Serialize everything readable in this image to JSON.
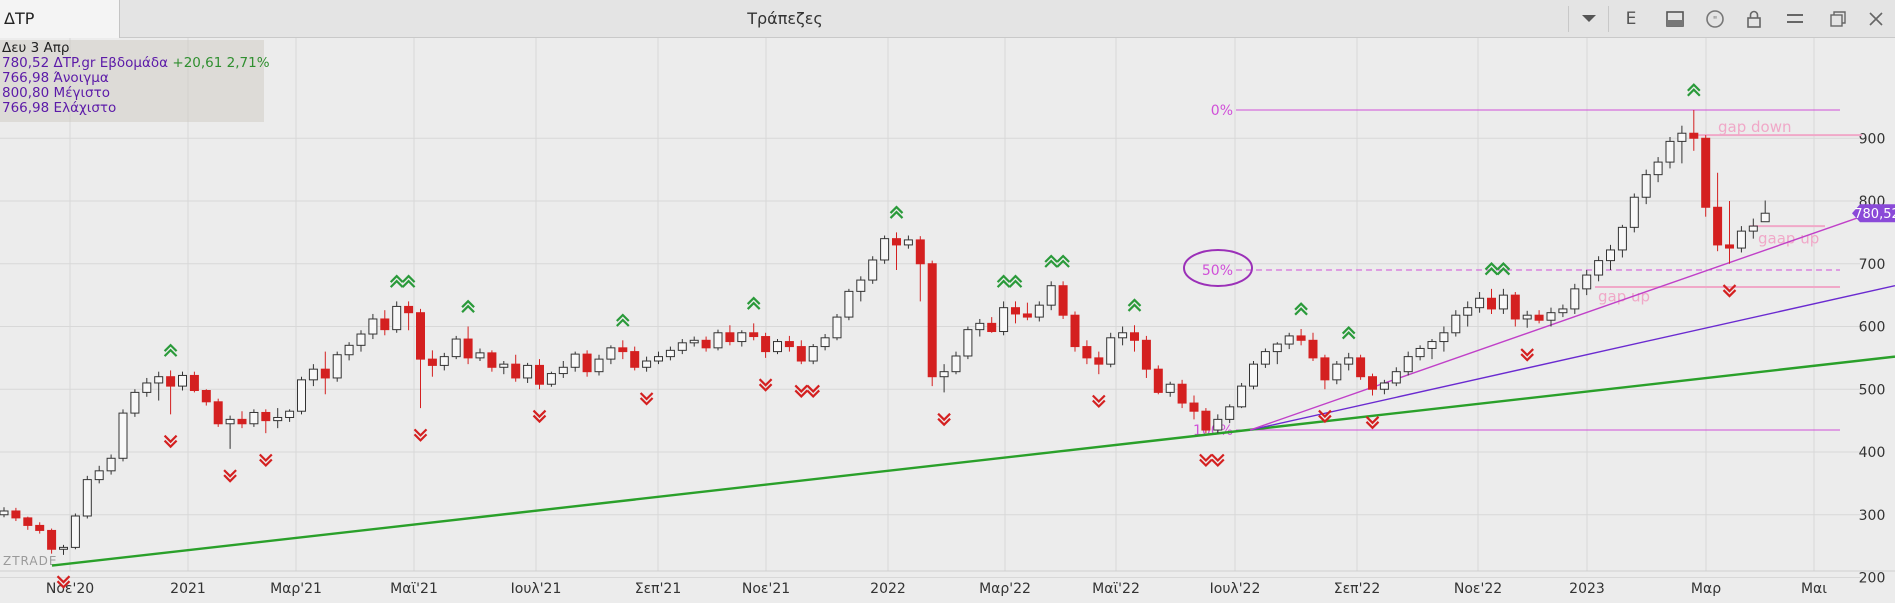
{
  "header": {
    "symbol": "ΔΤΡ",
    "title": "Τράπεζες",
    "e_label": "E"
  },
  "info": {
    "date": "Δευ 3 Απρ",
    "last": "780,52",
    "source": "ΔTP.gr Εβδομάδα",
    "change": "+20,61",
    "change_pct": "2,71%",
    "open": "766,98",
    "open_label": "Άνοιγμα",
    "high": "800,80",
    "high_label": "Μέγιστο",
    "low": "766,98",
    "low_label": "Ελάχιστο"
  },
  "watermark": "ZTRADE",
  "price_tag": "780,52",
  "colors": {
    "up_fill": "#f8f8f8",
    "down": "#d42020",
    "green_trend": "#2aa02a",
    "purple": "#6a2ad0",
    "magenta": "#d050d8",
    "pink": "#f0a8c8",
    "up_arrow": "#2a9a3a",
    "down_arrow": "#d42020"
  },
  "chart_data": {
    "type": "candlestick",
    "interval": "weekly",
    "ylim": [
      180,
      1005
    ],
    "y_ticks": [
      200,
      300,
      400,
      500,
      600,
      700,
      800,
      900
    ],
    "x_tick_labels": [
      "Νοε'20",
      "2021",
      "Μαρ'21",
      "Μαϊ'21",
      "Ιουλ'21",
      "Σεπ'21",
      "Νοε'21",
      "2022",
      "Μαρ'22",
      "Μαϊ'22",
      "Ιουλ'22",
      "Σεπ'22",
      "Νοε'22",
      "2023",
      "Μαρ",
      "Μαι"
    ],
    "candles": [
      [
        300,
        312,
        296,
        306
      ],
      [
        306,
        311,
        290,
        295
      ],
      [
        295,
        297,
        276,
        283
      ],
      [
        283,
        288,
        270,
        275
      ],
      [
        275,
        278,
        238,
        245
      ],
      [
        245,
        252,
        236,
        248
      ],
      [
        248,
        302,
        245,
        298
      ],
      [
        298,
        362,
        294,
        356
      ],
      [
        356,
        378,
        350,
        370
      ],
      [
        370,
        396,
        364,
        390
      ],
      [
        390,
        468,
        385,
        462
      ],
      [
        462,
        500,
        456,
        495
      ],
      [
        495,
        518,
        488,
        510
      ],
      [
        510,
        528,
        482,
        520
      ],
      [
        520,
        530,
        460,
        505
      ],
      [
        505,
        528,
        498,
        522
      ],
      [
        522,
        528,
        495,
        498
      ],
      [
        498,
        500,
        474,
        480
      ],
      [
        480,
        485,
        440,
        445
      ],
      [
        445,
        458,
        405,
        452
      ],
      [
        452,
        465,
        438,
        445
      ],
      [
        445,
        468,
        440,
        463
      ],
      [
        463,
        468,
        430,
        450
      ],
      [
        450,
        470,
        438,
        455
      ],
      [
        455,
        468,
        448,
        465
      ],
      [
        465,
        520,
        460,
        515
      ],
      [
        515,
        540,
        505,
        532
      ],
      [
        532,
        560,
        492,
        518
      ],
      [
        518,
        560,
        512,
        555
      ],
      [
        555,
        575,
        546,
        570
      ],
      [
        570,
        594,
        560,
        588
      ],
      [
        588,
        620,
        580,
        612
      ],
      [
        612,
        626,
        586,
        595
      ],
      [
        595,
        640,
        590,
        632
      ],
      [
        632,
        640,
        594,
        622
      ],
      [
        622,
        628,
        470,
        548
      ],
      [
        548,
        562,
        520,
        538
      ],
      [
        538,
        558,
        530,
        552
      ],
      [
        552,
        585,
        548,
        580
      ],
      [
        580,
        600,
        540,
        550
      ],
      [
        550,
        565,
        545,
        558
      ],
      [
        558,
        562,
        528,
        535
      ],
      [
        535,
        545,
        524,
        540
      ],
      [
        540,
        555,
        512,
        518
      ],
      [
        518,
        542,
        510,
        538
      ],
      [
        538,
        548,
        500,
        508
      ],
      [
        508,
        528,
        504,
        525
      ],
      [
        525,
        545,
        518,
        535
      ],
      [
        535,
        560,
        528,
        556
      ],
      [
        556,
        562,
        520,
        528
      ],
      [
        528,
        555,
        522,
        548
      ],
      [
        548,
        570,
        540,
        566
      ],
      [
        566,
        578,
        548,
        560
      ],
      [
        560,
        568,
        530,
        535
      ],
      [
        535,
        552,
        528,
        545
      ],
      [
        545,
        560,
        540,
        552
      ],
      [
        552,
        568,
        546,
        562
      ],
      [
        562,
        580,
        556,
        574
      ],
      [
        574,
        584,
        568,
        578
      ],
      [
        578,
        584,
        560,
        566
      ],
      [
        566,
        595,
        562,
        590
      ],
      [
        590,
        602,
        570,
        576
      ],
      [
        576,
        594,
        568,
        590
      ],
      [
        590,
        605,
        578,
        584
      ],
      [
        584,
        590,
        550,
        560
      ],
      [
        560,
        580,
        556,
        576
      ],
      [
        576,
        585,
        560,
        568
      ],
      [
        568,
        578,
        540,
        545
      ],
      [
        545,
        572,
        540,
        568
      ],
      [
        568,
        588,
        562,
        582
      ],
      [
        582,
        620,
        578,
        615
      ],
      [
        615,
        660,
        610,
        656
      ],
      [
        656,
        680,
        640,
        674
      ],
      [
        674,
        712,
        668,
        706
      ],
      [
        706,
        745,
        700,
        740
      ],
      [
        740,
        750,
        690,
        730
      ],
      [
        730,
        745,
        724,
        738
      ],
      [
        738,
        744,
        640,
        700
      ],
      [
        700,
        705,
        505,
        520
      ],
      [
        520,
        540,
        495,
        528
      ],
      [
        528,
        560,
        524,
        553
      ],
      [
        553,
        600,
        548,
        595
      ],
      [
        595,
        612,
        584,
        605
      ],
      [
        605,
        615,
        590,
        592
      ],
      [
        592,
        640,
        586,
        630
      ],
      [
        630,
        640,
        605,
        620
      ],
      [
        620,
        638,
        610,
        615
      ],
      [
        615,
        640,
        608,
        634
      ],
      [
        634,
        672,
        626,
        665
      ],
      [
        665,
        672,
        612,
        618
      ],
      [
        618,
        624,
        560,
        568
      ],
      [
        568,
        578,
        540,
        550
      ],
      [
        550,
        560,
        524,
        540
      ],
      [
        540,
        590,
        535,
        582
      ],
      [
        582,
        600,
        570,
        590
      ],
      [
        590,
        602,
        560,
        578
      ],
      [
        578,
        585,
        518,
        532
      ],
      [
        532,
        538,
        492,
        495
      ],
      [
        495,
        512,
        488,
        508
      ],
      [
        508,
        515,
        470,
        478
      ],
      [
        478,
        490,
        452,
        465
      ],
      [
        465,
        470,
        430,
        435
      ],
      [
        435,
        460,
        430,
        452
      ],
      [
        452,
        476,
        446,
        472
      ],
      [
        472,
        510,
        470,
        505
      ],
      [
        505,
        545,
        500,
        540
      ],
      [
        540,
        565,
        534,
        560
      ],
      [
        560,
        575,
        540,
        572
      ],
      [
        572,
        590,
        564,
        585
      ],
      [
        585,
        596,
        570,
        578
      ],
      [
        578,
        590,
        545,
        550
      ],
      [
        550,
        555,
        500,
        515
      ],
      [
        515,
        545,
        508,
        540
      ],
      [
        540,
        558,
        530,
        550
      ],
      [
        550,
        555,
        515,
        520
      ],
      [
        520,
        525,
        490,
        500
      ],
      [
        500,
        515,
        492,
        510
      ],
      [
        510,
        535,
        505,
        528
      ],
      [
        528,
        560,
        522,
        552
      ],
      [
        552,
        570,
        546,
        565
      ],
      [
        565,
        580,
        548,
        576
      ],
      [
        576,
        600,
        560,
        590
      ],
      [
        590,
        626,
        584,
        618
      ],
      [
        618,
        640,
        600,
        630
      ],
      [
        630,
        655,
        622,
        645
      ],
      [
        645,
        660,
        620,
        628
      ],
      [
        628,
        660,
        620,
        650
      ],
      [
        650,
        655,
        600,
        612
      ],
      [
        612,
        625,
        598,
        618
      ],
      [
        618,
        626,
        605,
        610
      ],
      [
        610,
        630,
        600,
        622
      ],
      [
        622,
        635,
        615,
        628
      ],
      [
        628,
        668,
        620,
        660
      ],
      [
        660,
        690,
        650,
        682
      ],
      [
        682,
        712,
        672,
        705
      ],
      [
        705,
        730,
        690,
        722
      ],
      [
        722,
        762,
        710,
        758
      ],
      [
        758,
        812,
        750,
        806
      ],
      [
        806,
        850,
        795,
        842
      ],
      [
        842,
        870,
        830,
        862
      ],
      [
        862,
        902,
        852,
        895
      ],
      [
        895,
        920,
        860,
        908
      ],
      [
        908,
        945,
        880,
        900
      ],
      [
        900,
        905,
        775,
        790
      ],
      [
        790,
        845,
        720,
        730
      ],
      [
        730,
        800,
        700,
        725
      ],
      [
        725,
        760,
        718,
        752
      ],
      [
        752,
        772,
        740,
        760
      ],
      [
        766.98,
        800.8,
        766.98,
        780.52
      ]
    ],
    "lines": {
      "green_trend": {
        "from": {
          "date": "Νοε'20",
          "value": 219
        },
        "to": {
          "date": "Μαι",
          "value": 552
        }
      },
      "purple_trend": {
        "from": {
          "date": "Ιουλ'22",
          "value": 435
        },
        "to": {
          "date": "Μαι",
          "value": 665
        }
      },
      "magenta_trend": {
        "from": {
          "date": "Ιουλ'22",
          "value": 435
        },
        "to": {
          "date": "Μαι",
          "value": 780
        }
      }
    },
    "fib_levels": [
      "0%",
      "50%",
      "100%"
    ],
    "annotations": [
      "gap down",
      "gaap up",
      "gap up"
    ]
  }
}
